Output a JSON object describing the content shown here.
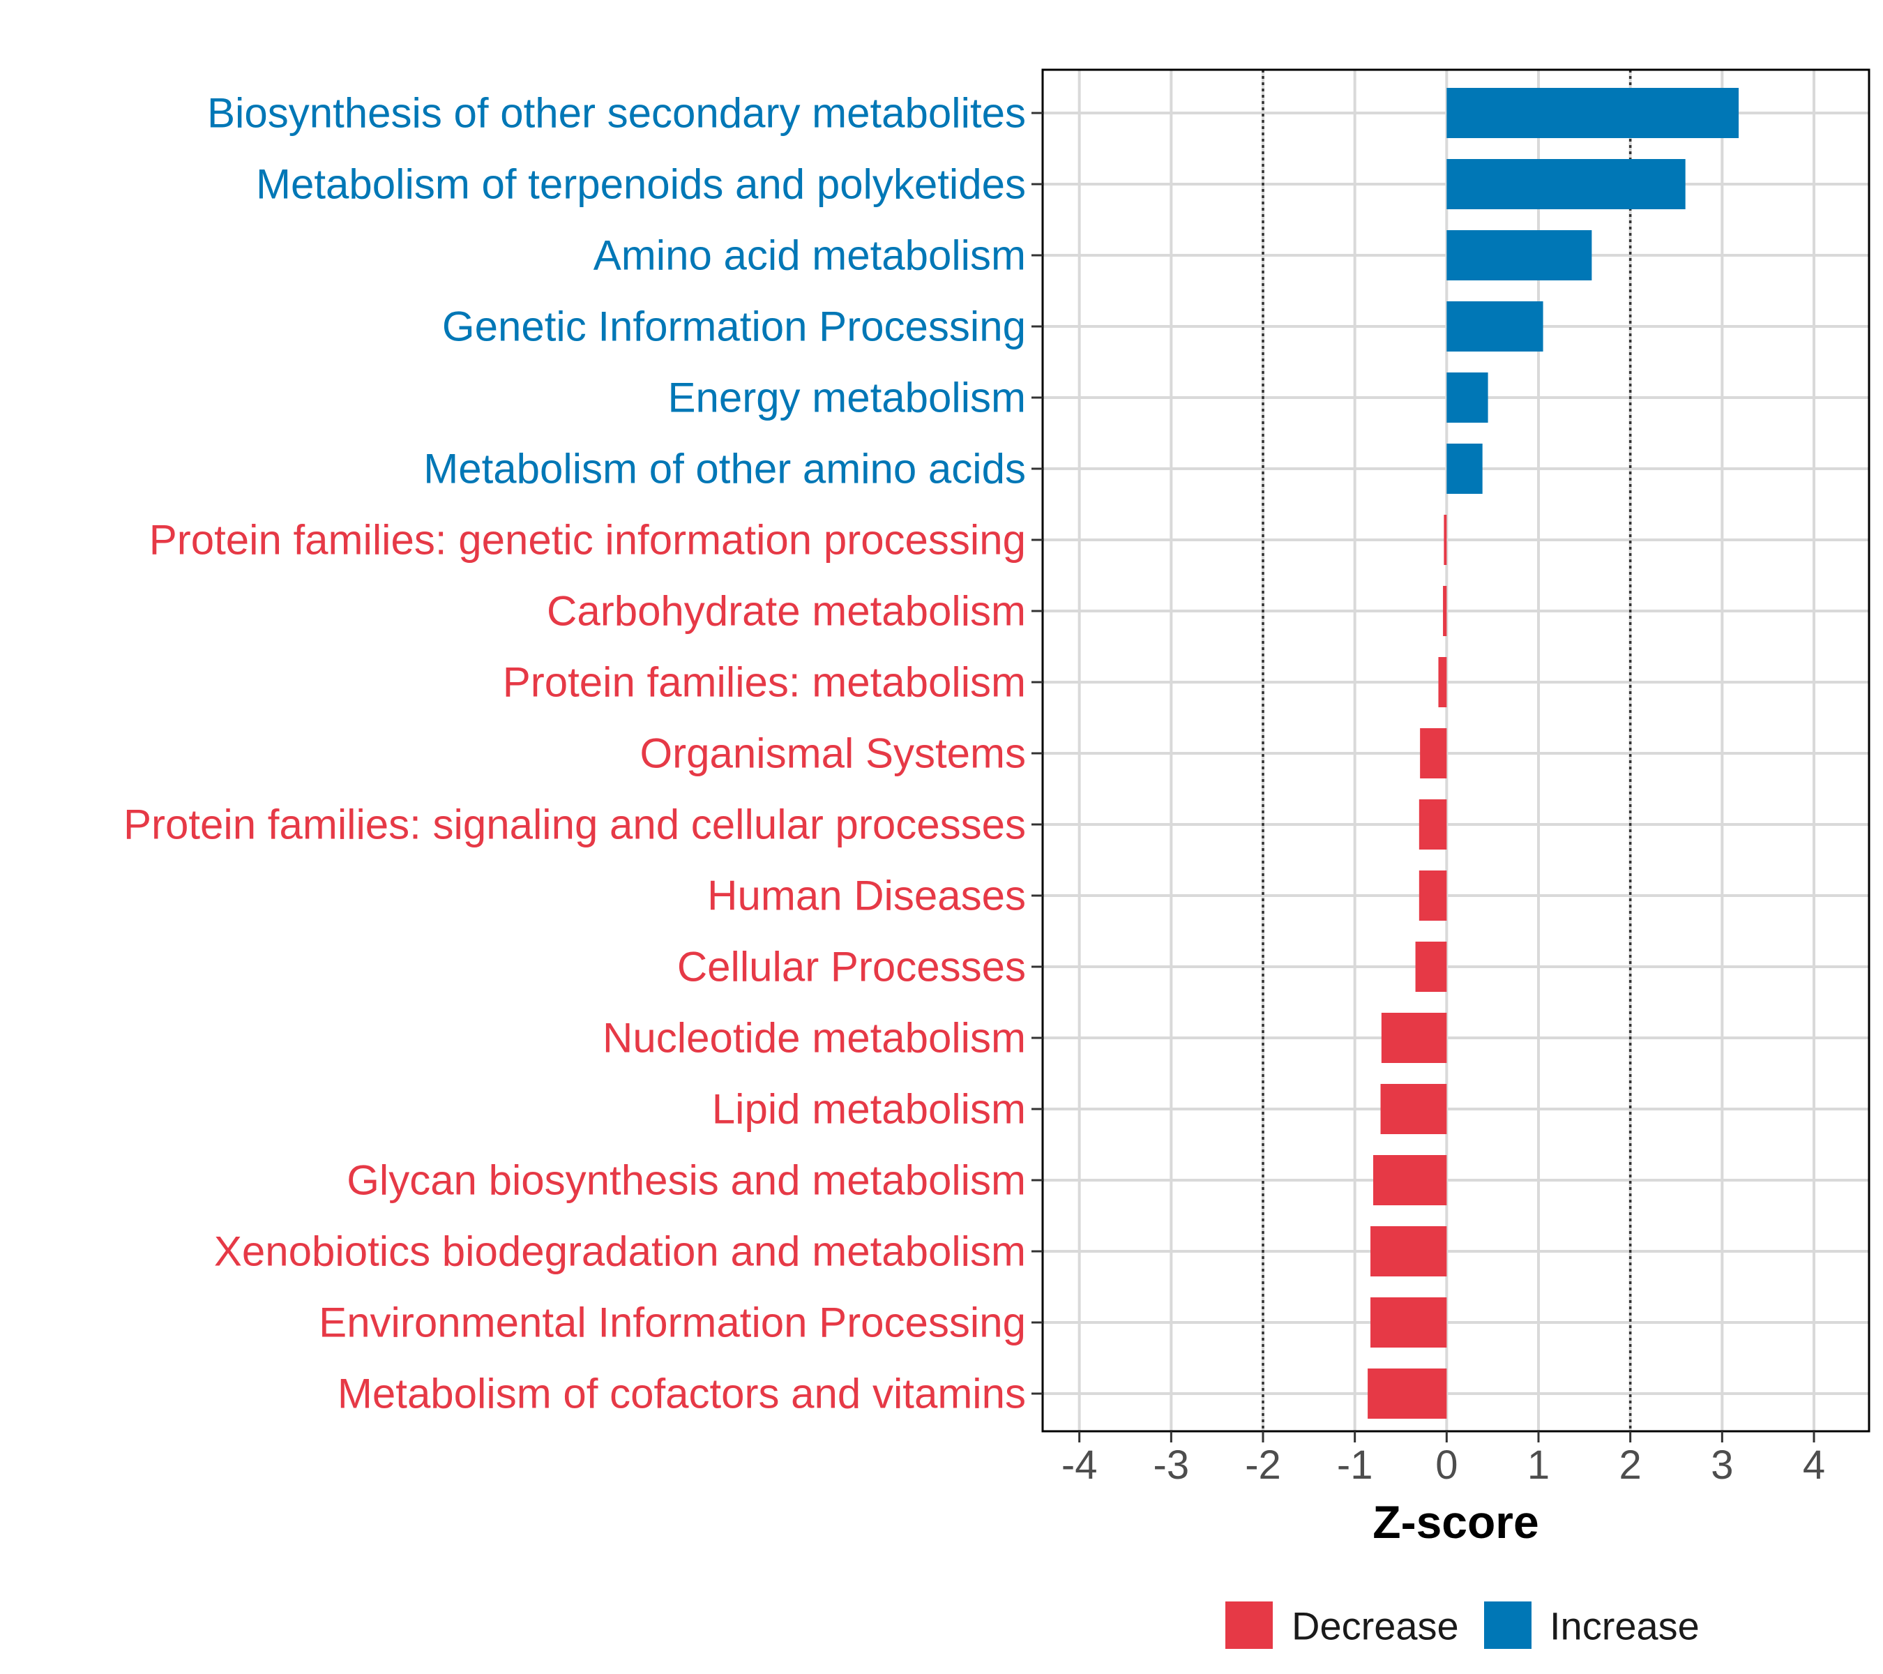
{
  "chart_data": {
    "type": "bar",
    "orientation": "horizontal",
    "title": "",
    "xlabel": "Z-score",
    "ylabel": "",
    "xlim": [
      -4.4,
      4.6
    ],
    "xticks": [
      -4,
      -3,
      -2,
      -1,
      0,
      1,
      2,
      3,
      4
    ],
    "xtick_labels": [
      "-4",
      "-3",
      "-2",
      "-1",
      "0",
      "1",
      "2",
      "3",
      "4"
    ],
    "reference_lines": [
      -2,
      2
    ],
    "grid": true,
    "legend_position": "bottom",
    "colors": {
      "Decrease": "#e63946",
      "Increase": "#0077b6"
    },
    "legend": [
      {
        "label": "Decrease",
        "group": "Decrease"
      },
      {
        "label": "Increase",
        "group": "Increase"
      }
    ],
    "categories": [
      "Biosynthesis of other secondary metabolites",
      "Metabolism of terpenoids and polyketides",
      "Amino acid metabolism",
      "Genetic Information Processing",
      "Energy metabolism",
      "Metabolism of other amino acids",
      "Protein families: genetic information processing",
      "Carbohydrate metabolism",
      "Protein families: metabolism",
      "Organismal Systems",
      "Protein families: signaling and cellular processes",
      "Human Diseases",
      "Cellular Processes",
      "Nucleotide metabolism",
      "Lipid metabolism",
      "Glycan biosynthesis and metabolism",
      "Xenobiotics biodegradation and metabolism",
      "Environmental Information Processing",
      "Metabolism of cofactors and vitamins"
    ],
    "values": [
      3.18,
      2.6,
      1.58,
      1.05,
      0.45,
      0.39,
      -0.03,
      -0.04,
      -0.09,
      -0.29,
      -0.3,
      -0.3,
      -0.34,
      -0.71,
      -0.72,
      -0.8,
      -0.83,
      -0.83,
      -0.86
    ],
    "groups": [
      "Increase",
      "Increase",
      "Increase",
      "Increase",
      "Increase",
      "Increase",
      "Decrease",
      "Decrease",
      "Decrease",
      "Decrease",
      "Decrease",
      "Decrease",
      "Decrease",
      "Decrease",
      "Decrease",
      "Decrease",
      "Decrease",
      "Decrease",
      "Decrease"
    ]
  }
}
